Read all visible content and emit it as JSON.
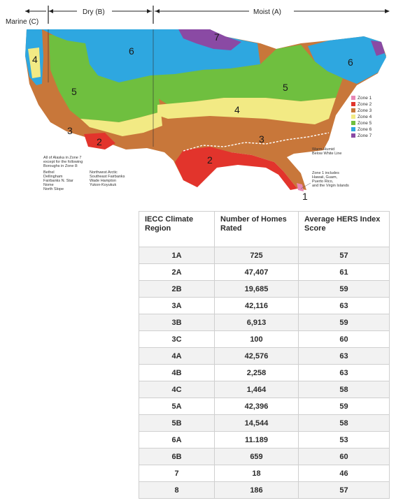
{
  "map": {
    "regions": {
      "marine": "Marine (C)",
      "dry": "Dry (B)",
      "moist": "Moist (A)"
    },
    "zone_numbers": [
      "1",
      "2",
      "2",
      "3",
      "3",
      "4",
      "4",
      "5",
      "5",
      "6",
      "6",
      "7"
    ],
    "legend": [
      {
        "label": "Zone 1",
        "color": "#e887b5"
      },
      {
        "label": "Zone 2",
        "color": "#e2342c"
      },
      {
        "label": "Zone 3",
        "color": "#c8773a"
      },
      {
        "label": "Zone 4",
        "color": "#f2ea84"
      },
      {
        "label": "Zone 5",
        "color": "#6fbf3f"
      },
      {
        "label": "Zone 6",
        "color": "#2ea7e0"
      },
      {
        "label": "Zone 7",
        "color": "#8a4aa4"
      }
    ],
    "alaska_note": [
      "All of Alaska in Zone 7",
      "except for the following",
      "Boroughs in Zone 8:"
    ],
    "boroughs_col1": [
      "Bethel",
      "Dellingham",
      "Fairbanks N. Star",
      "Nome",
      "North Slope"
    ],
    "boroughs_col2": [
      "Northwest Arctic",
      "Southeast Fairbanks",
      "Wade Hampton",
      "Yukon-Koyukuk"
    ],
    "warm_humid_note": [
      "Warm-Humid",
      "Below White Line"
    ],
    "zone1_note": [
      "Zone 1 includes",
      "Hawaii, Guam,",
      "Puerto Rico,",
      "and the Virgin Islands"
    ]
  },
  "table": {
    "headers": [
      "IECC Climate Region",
      "Number of Homes Rated",
      "Average HERS Index Score"
    ],
    "rows": [
      [
        "1A",
        "725",
        "57"
      ],
      [
        "2A",
        "47,407",
        "61"
      ],
      [
        "2B",
        "19,685",
        "59"
      ],
      [
        "3A",
        "42,116",
        "63"
      ],
      [
        "3B",
        "6,913",
        "59"
      ],
      [
        "3C",
        "100",
        "60"
      ],
      [
        "4A",
        "42,576",
        "63"
      ],
      [
        "4B",
        "2,258",
        "63"
      ],
      [
        "4C",
        "1,464",
        "58"
      ],
      [
        "5A",
        "42,396",
        "59"
      ],
      [
        "5B",
        "14,544",
        "58"
      ],
      [
        "6A",
        "11.189",
        "53"
      ],
      [
        "6B",
        "659",
        "60"
      ],
      [
        "7",
        "18",
        "46"
      ],
      [
        "8",
        "186",
        "57"
      ]
    ]
  }
}
